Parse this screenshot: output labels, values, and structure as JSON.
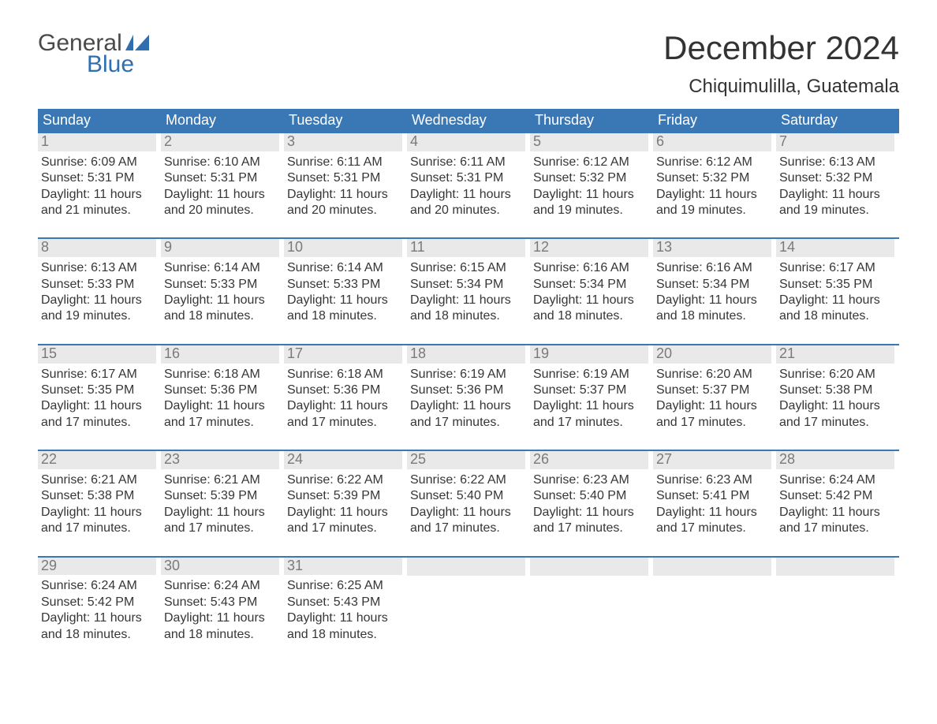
{
  "brand": {
    "word1": "General",
    "word2": "Blue"
  },
  "title": {
    "month": "December 2024",
    "location": "Chiquimulilla, Guatemala"
  },
  "colors": {
    "header_bg": "#3a78b5",
    "header_text": "#ffffff",
    "daynum_bg": "#e9e9e9",
    "daynum_text": "#7a7a7a",
    "body_text": "#363636",
    "brand_gray": "#4a4a4a",
    "brand_blue": "#2f6fb0",
    "rule": "#3a78b5",
    "page_bg": "#ffffff"
  },
  "days_of_week": [
    "Sunday",
    "Monday",
    "Tuesday",
    "Wednesday",
    "Thursday",
    "Friday",
    "Saturday"
  ],
  "weeks": [
    [
      {
        "n": "1",
        "sr": "Sunrise: 6:09 AM",
        "ss": "Sunset: 5:31 PM",
        "d1": "Daylight: 11 hours",
        "d2": "and 21 minutes."
      },
      {
        "n": "2",
        "sr": "Sunrise: 6:10 AM",
        "ss": "Sunset: 5:31 PM",
        "d1": "Daylight: 11 hours",
        "d2": "and 20 minutes."
      },
      {
        "n": "3",
        "sr": "Sunrise: 6:11 AM",
        "ss": "Sunset: 5:31 PM",
        "d1": "Daylight: 11 hours",
        "d2": "and 20 minutes."
      },
      {
        "n": "4",
        "sr": "Sunrise: 6:11 AM",
        "ss": "Sunset: 5:31 PM",
        "d1": "Daylight: 11 hours",
        "d2": "and 20 minutes."
      },
      {
        "n": "5",
        "sr": "Sunrise: 6:12 AM",
        "ss": "Sunset: 5:32 PM",
        "d1": "Daylight: 11 hours",
        "d2": "and 19 minutes."
      },
      {
        "n": "6",
        "sr": "Sunrise: 6:12 AM",
        "ss": "Sunset: 5:32 PM",
        "d1": "Daylight: 11 hours",
        "d2": "and 19 minutes."
      },
      {
        "n": "7",
        "sr": "Sunrise: 6:13 AM",
        "ss": "Sunset: 5:32 PM",
        "d1": "Daylight: 11 hours",
        "d2": "and 19 minutes."
      }
    ],
    [
      {
        "n": "8",
        "sr": "Sunrise: 6:13 AM",
        "ss": "Sunset: 5:33 PM",
        "d1": "Daylight: 11 hours",
        "d2": "and 19 minutes."
      },
      {
        "n": "9",
        "sr": "Sunrise: 6:14 AM",
        "ss": "Sunset: 5:33 PM",
        "d1": "Daylight: 11 hours",
        "d2": "and 18 minutes."
      },
      {
        "n": "10",
        "sr": "Sunrise: 6:14 AM",
        "ss": "Sunset: 5:33 PM",
        "d1": "Daylight: 11 hours",
        "d2": "and 18 minutes."
      },
      {
        "n": "11",
        "sr": "Sunrise: 6:15 AM",
        "ss": "Sunset: 5:34 PM",
        "d1": "Daylight: 11 hours",
        "d2": "and 18 minutes."
      },
      {
        "n": "12",
        "sr": "Sunrise: 6:16 AM",
        "ss": "Sunset: 5:34 PM",
        "d1": "Daylight: 11 hours",
        "d2": "and 18 minutes."
      },
      {
        "n": "13",
        "sr": "Sunrise: 6:16 AM",
        "ss": "Sunset: 5:34 PM",
        "d1": "Daylight: 11 hours",
        "d2": "and 18 minutes."
      },
      {
        "n": "14",
        "sr": "Sunrise: 6:17 AM",
        "ss": "Sunset: 5:35 PM",
        "d1": "Daylight: 11 hours",
        "d2": "and 18 minutes."
      }
    ],
    [
      {
        "n": "15",
        "sr": "Sunrise: 6:17 AM",
        "ss": "Sunset: 5:35 PM",
        "d1": "Daylight: 11 hours",
        "d2": "and 17 minutes."
      },
      {
        "n": "16",
        "sr": "Sunrise: 6:18 AM",
        "ss": "Sunset: 5:36 PM",
        "d1": "Daylight: 11 hours",
        "d2": "and 17 minutes."
      },
      {
        "n": "17",
        "sr": "Sunrise: 6:18 AM",
        "ss": "Sunset: 5:36 PM",
        "d1": "Daylight: 11 hours",
        "d2": "and 17 minutes."
      },
      {
        "n": "18",
        "sr": "Sunrise: 6:19 AM",
        "ss": "Sunset: 5:36 PM",
        "d1": "Daylight: 11 hours",
        "d2": "and 17 minutes."
      },
      {
        "n": "19",
        "sr": "Sunrise: 6:19 AM",
        "ss": "Sunset: 5:37 PM",
        "d1": "Daylight: 11 hours",
        "d2": "and 17 minutes."
      },
      {
        "n": "20",
        "sr": "Sunrise: 6:20 AM",
        "ss": "Sunset: 5:37 PM",
        "d1": "Daylight: 11 hours",
        "d2": "and 17 minutes."
      },
      {
        "n": "21",
        "sr": "Sunrise: 6:20 AM",
        "ss": "Sunset: 5:38 PM",
        "d1": "Daylight: 11 hours",
        "d2": "and 17 minutes."
      }
    ],
    [
      {
        "n": "22",
        "sr": "Sunrise: 6:21 AM",
        "ss": "Sunset: 5:38 PM",
        "d1": "Daylight: 11 hours",
        "d2": "and 17 minutes."
      },
      {
        "n": "23",
        "sr": "Sunrise: 6:21 AM",
        "ss": "Sunset: 5:39 PM",
        "d1": "Daylight: 11 hours",
        "d2": "and 17 minutes."
      },
      {
        "n": "24",
        "sr": "Sunrise: 6:22 AM",
        "ss": "Sunset: 5:39 PM",
        "d1": "Daylight: 11 hours",
        "d2": "and 17 minutes."
      },
      {
        "n": "25",
        "sr": "Sunrise: 6:22 AM",
        "ss": "Sunset: 5:40 PM",
        "d1": "Daylight: 11 hours",
        "d2": "and 17 minutes."
      },
      {
        "n": "26",
        "sr": "Sunrise: 6:23 AM",
        "ss": "Sunset: 5:40 PM",
        "d1": "Daylight: 11 hours",
        "d2": "and 17 minutes."
      },
      {
        "n": "27",
        "sr": "Sunrise: 6:23 AM",
        "ss": "Sunset: 5:41 PM",
        "d1": "Daylight: 11 hours",
        "d2": "and 17 minutes."
      },
      {
        "n": "28",
        "sr": "Sunrise: 6:24 AM",
        "ss": "Sunset: 5:42 PM",
        "d1": "Daylight: 11 hours",
        "d2": "and 17 minutes."
      }
    ],
    [
      {
        "n": "29",
        "sr": "Sunrise: 6:24 AM",
        "ss": "Sunset: 5:42 PM",
        "d1": "Daylight: 11 hours",
        "d2": "and 18 minutes."
      },
      {
        "n": "30",
        "sr": "Sunrise: 6:24 AM",
        "ss": "Sunset: 5:43 PM",
        "d1": "Daylight: 11 hours",
        "d2": "and 18 minutes."
      },
      {
        "n": "31",
        "sr": "Sunrise: 6:25 AM",
        "ss": "Sunset: 5:43 PM",
        "d1": "Daylight: 11 hours",
        "d2": "and 18 minutes."
      },
      {
        "empty": true
      },
      {
        "empty": true
      },
      {
        "empty": true
      },
      {
        "empty": true
      }
    ]
  ]
}
